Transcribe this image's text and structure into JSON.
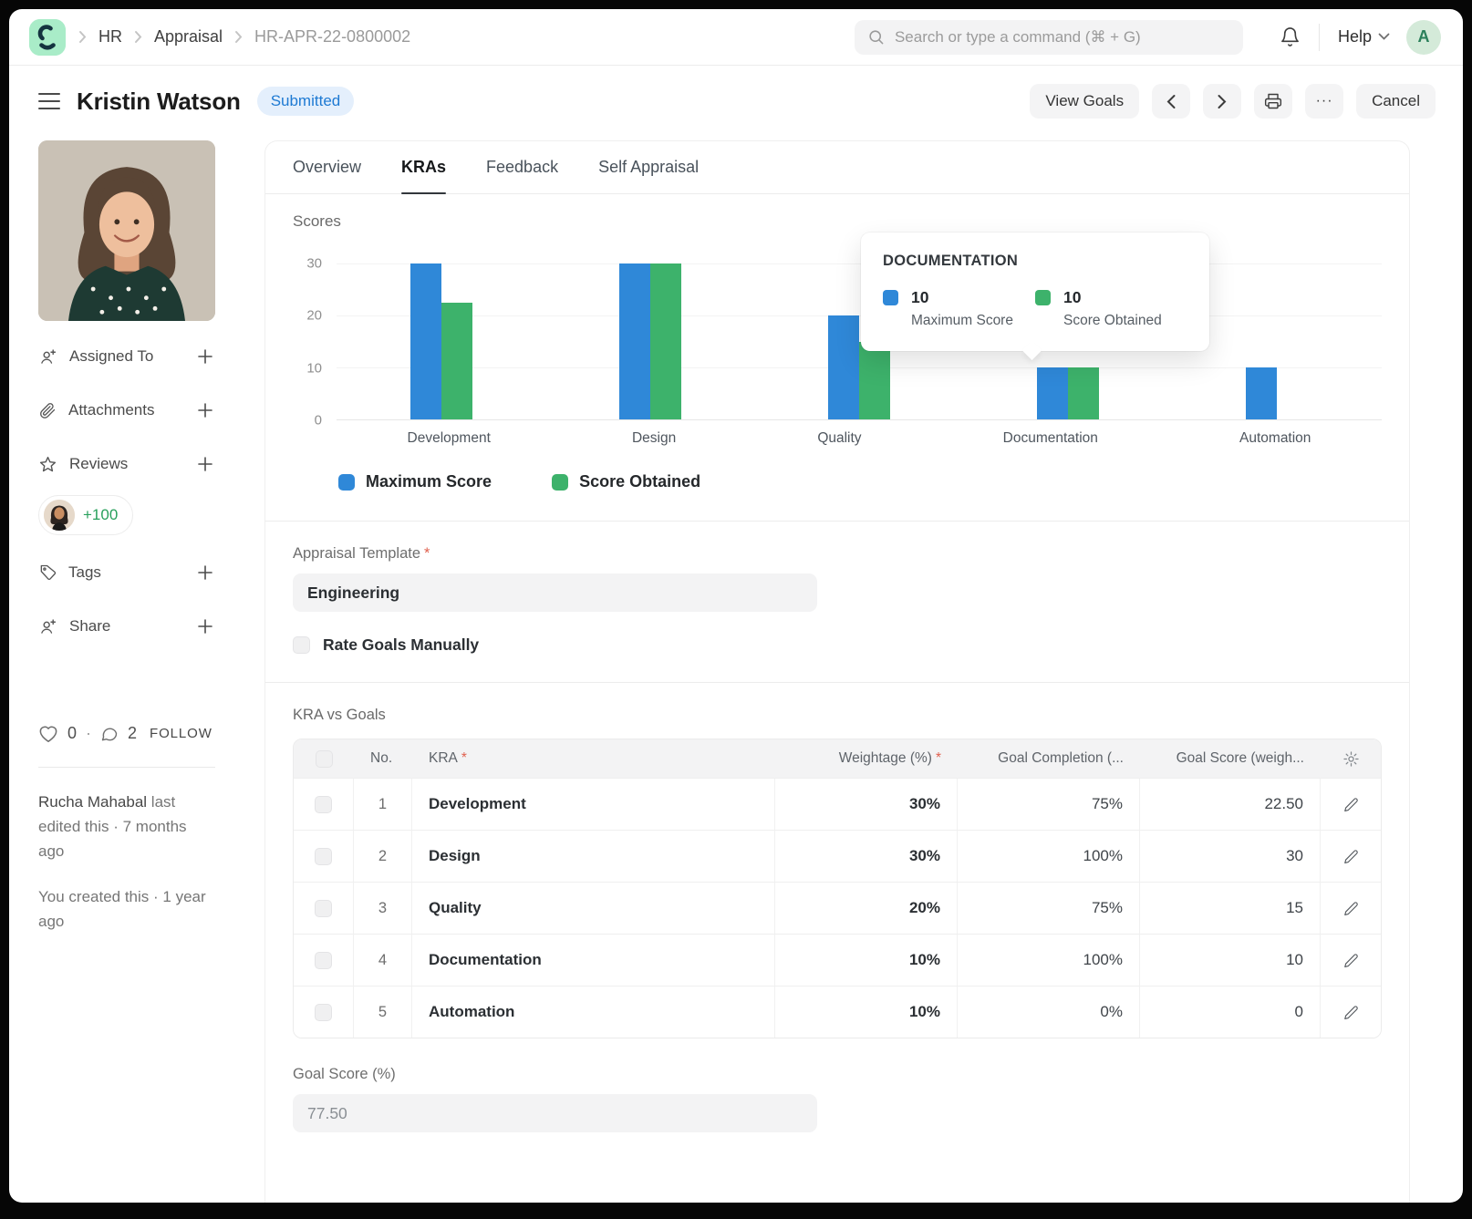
{
  "navbar": {
    "breadcrumb": {
      "items": [
        "HR",
        "Appraisal",
        "HR-APR-22-0800002"
      ]
    },
    "search": {
      "placeholder": "Search or type a command (⌘ + G)"
    },
    "help_label": "Help",
    "avatar_initial": "A"
  },
  "header": {
    "title": "Kristin Watson",
    "status": "Submitted",
    "view_goals_label": "View Goals",
    "more_label": "···",
    "cancel_label": "Cancel"
  },
  "sidebar": {
    "assigned_to_label": "Assigned To",
    "attachments_label": "Attachments",
    "reviews_label": "Reviews",
    "reviews_overflow": "+100",
    "tags_label": "Tags",
    "share_label": "Share",
    "likes_count": "0",
    "dot": "·",
    "comments_count": "2",
    "follow_label": "FOLLOW",
    "edited_by": "Rucha Mahabal",
    "edited_suffix": " last edited this · 7 months ago",
    "created_text": "You created this · 1 year ago"
  },
  "tabs": {
    "overview": "Overview",
    "kras": "KRAs",
    "feedback": "Feedback",
    "self_appraisal": "Self Appraisal"
  },
  "chart_data": {
    "type": "bar",
    "title": "Scores",
    "categories": [
      "Development",
      "Design",
      "Quality",
      "Documentation",
      "Automation"
    ],
    "series": [
      {
        "name": "Maximum Score",
        "color": "#2f88d8",
        "values": [
          30,
          30,
          20,
          10,
          10
        ]
      },
      {
        "name": "Score Obtained",
        "color": "#3db26b",
        "values": [
          22.5,
          30,
          15,
          10,
          0
        ]
      }
    ],
    "ylim": [
      0,
      30
    ],
    "yticks": [
      0,
      10,
      20,
      30
    ],
    "grid": true,
    "legend_position": "bottom"
  },
  "chart_tooltip": {
    "title": "DOCUMENTATION",
    "entries": [
      {
        "value": "10",
        "label": "Maximum Score"
      },
      {
        "value": "10",
        "label": "Score Obtained"
      }
    ]
  },
  "form": {
    "template_label": "Appraisal Template",
    "required_marker": "*",
    "template_value": "Engineering",
    "rate_goals_label": "Rate Goals Manually",
    "goal_score_label": "Goal Score (%)",
    "goal_score_value": "77.50"
  },
  "kra_table": {
    "section_title": "KRA vs Goals",
    "columns": {
      "no": "No.",
      "kra": "KRA",
      "weightage": "Weightage (%)",
      "completion": "Goal Completion (...",
      "score": "Goal Score (weigh..."
    },
    "rows": [
      {
        "no": "1",
        "kra": "Development",
        "weightage": "30%",
        "completion": "75%",
        "score": "22.50"
      },
      {
        "no": "2",
        "kra": "Design",
        "weightage": "30%",
        "completion": "100%",
        "score": "30"
      },
      {
        "no": "3",
        "kra": "Quality",
        "weightage": "20%",
        "completion": "75%",
        "score": "15"
      },
      {
        "no": "4",
        "kra": "Documentation",
        "weightage": "10%",
        "completion": "100%",
        "score": "10"
      },
      {
        "no": "5",
        "kra": "Automation",
        "weightage": "10%",
        "completion": "0%",
        "score": "0"
      }
    ]
  }
}
